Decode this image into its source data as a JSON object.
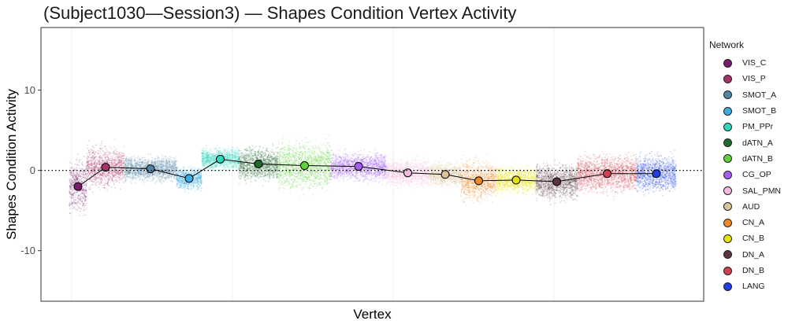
{
  "title": "(Subject1030—Session3) — Shapes Condition Vertex Activity",
  "chart_data": {
    "type": "scatter",
    "title": "(Subject1030—Session3) — Shapes Condition Vertex Activity",
    "xlabel": "Vertex",
    "ylabel": "Shapes Condition Activity",
    "ylim": [
      -16.3,
      17.8
    ],
    "yticks": [
      -10,
      0,
      10
    ],
    "ytick_labels": [
      "-10",
      "0",
      "10"
    ],
    "reference_line": {
      "y": 0,
      "style": "dotted"
    },
    "grid": true,
    "legend": {
      "title": "Network",
      "placement": "right"
    },
    "series": [
      {
        "name": "VIS_C",
        "color": "#7a1a6e",
        "mean": -2.0,
        "spread": [
          -6.5,
          10.0
        ]
      },
      {
        "name": "VIS_P",
        "color": "#a8336a",
        "mean": 0.4,
        "spread": [
          -3.5,
          9.0
        ]
      },
      {
        "name": "SMOT_A",
        "color": "#5286a6",
        "mean": 0.2,
        "spread": [
          -3.0,
          4.5
        ]
      },
      {
        "name": "SMOT_B",
        "color": "#3aaee0",
        "mean": -1.0,
        "spread": [
          -5.0,
          2.5
        ]
      },
      {
        "name": "PM_PPr",
        "color": "#2fd6c0",
        "mean": 1.4,
        "spread": [
          -2.0,
          5.0
        ]
      },
      {
        "name": "dATN_A",
        "color": "#226b2e",
        "mean": 0.8,
        "spread": [
          -4.5,
          5.5
        ]
      },
      {
        "name": "dATN_B",
        "color": "#5fd23c",
        "mean": 0.6,
        "spread": [
          -6.0,
          8.5
        ]
      },
      {
        "name": "CG_OP",
        "color": "#a65ef0",
        "mean": 0.5,
        "spread": [
          -3.5,
          5.0
        ]
      },
      {
        "name": "SAL_PMN",
        "color": "#f7b9e0",
        "mean": -0.3,
        "spread": [
          -5.0,
          3.5
        ]
      },
      {
        "name": "AUD",
        "color": "#d9c39a",
        "mean": -0.5,
        "spread": [
          -5.0,
          2.5
        ]
      },
      {
        "name": "CN_A",
        "color": "#f08a24",
        "mean": -1.3,
        "spread": [
          -8.0,
          4.0
        ]
      },
      {
        "name": "CN_B",
        "color": "#e8e30a",
        "mean": -1.2,
        "spread": [
          -6.0,
          2.5
        ]
      },
      {
        "name": "DN_A",
        "color": "#5c3540",
        "mean": -1.4,
        "spread": [
          -7.5,
          3.5
        ]
      },
      {
        "name": "DN_B",
        "color": "#d0404e",
        "mean": -0.4,
        "spread": [
          -6.5,
          5.0
        ]
      },
      {
        "name": "LANG",
        "color": "#1f3fe8",
        "mean": -0.4,
        "spread": [
          -5.5,
          5.5
        ]
      }
    ]
  }
}
